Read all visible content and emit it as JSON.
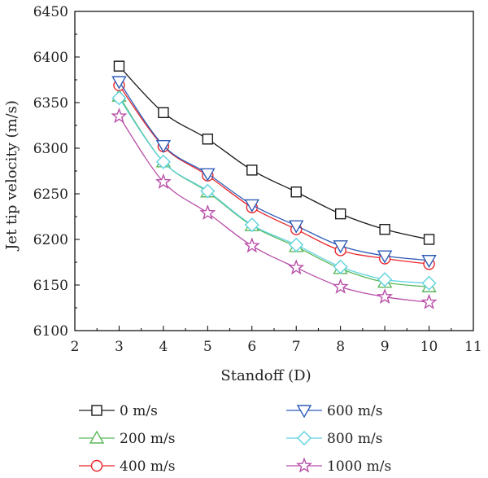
{
  "chart_data": {
    "type": "line",
    "title": "",
    "xlabel": "Standoff (D)",
    "ylabel": "Jet tip velocity (m/s)",
    "xlim": [
      2,
      11
    ],
    "ylim": [
      6100,
      6450
    ],
    "xticks": [
      2,
      3,
      4,
      5,
      6,
      7,
      8,
      9,
      10,
      11
    ],
    "yticks": [
      6100,
      6150,
      6200,
      6250,
      6300,
      6350,
      6400,
      6450
    ],
    "grid": false,
    "legend_position": "bottom",
    "x": [
      3,
      4,
      5,
      6,
      7,
      8,
      9,
      10
    ],
    "series": [
      {
        "name": "0 m/s",
        "marker": "square",
        "color": "#1a1a1a",
        "values": [
          6390,
          6339,
          6310,
          6276,
          6252,
          6228,
          6211,
          6200
        ]
      },
      {
        "name": "200 m/s",
        "marker": "triangle-up",
        "color": "#5cb85c",
        "values": [
          6357,
          6285,
          6252,
          6215,
          6192,
          6168,
          6153,
          6148
        ]
      },
      {
        "name": "400 m/s",
        "marker": "circle",
        "color": "#e8262b",
        "values": [
          6369,
          6302,
          6270,
          6235,
          6211,
          6188,
          6179,
          6173
        ]
      },
      {
        "name": "600 m/s",
        "marker": "triangle-down",
        "color": "#2e5cb8",
        "values": [
          6373,
          6303,
          6272,
          6238,
          6215,
          6193,
          6182,
          6177
        ]
      },
      {
        "name": "800 m/s",
        "marker": "diamond",
        "color": "#5ed3e0",
        "values": [
          6355,
          6285,
          6253,
          6216,
          6194,
          6170,
          6156,
          6152
        ]
      },
      {
        "name": "1000 m/s",
        "marker": "star",
        "color": "#b84ea8",
        "values": [
          6335,
          6263,
          6229,
          6193,
          6169,
          6148,
          6137,
          6131
        ]
      }
    ]
  }
}
